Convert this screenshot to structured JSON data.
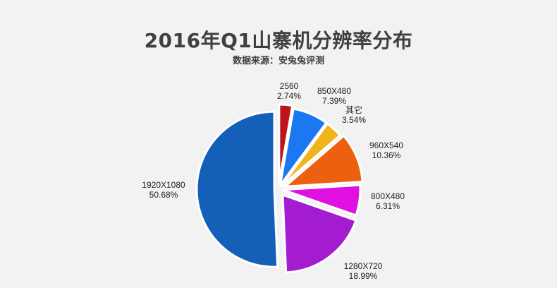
{
  "chart_data": {
    "type": "pie",
    "title": "2016年Q1山寨机分辨率分布",
    "subtitle": "数据来源：安兔兔评测",
    "slices": [
      {
        "label": "2560",
        "value": 2.74,
        "value_text": "2.74%",
        "color": "#c0141c"
      },
      {
        "label": "850X480",
        "value": 7.39,
        "value_text": "7.39%",
        "color": "#1c78f0"
      },
      {
        "label": "其它",
        "value": 3.54,
        "value_text": "3.54%",
        "color": "#f0b41c"
      },
      {
        "label": "960X540",
        "value": 10.36,
        "value_text": "10.36%",
        "color": "#ec6010"
      },
      {
        "label": "800X480",
        "value": 6.31,
        "value_text": "6.31%",
        "color": "#e010e0"
      },
      {
        "label": "1280X720",
        "value": 18.99,
        "value_text": "18.99%",
        "color": "#a41cd0"
      },
      {
        "label": "1920X1080",
        "value": 50.68,
        "value_text": "50.68%",
        "color": "#1460b8"
      }
    ]
  }
}
